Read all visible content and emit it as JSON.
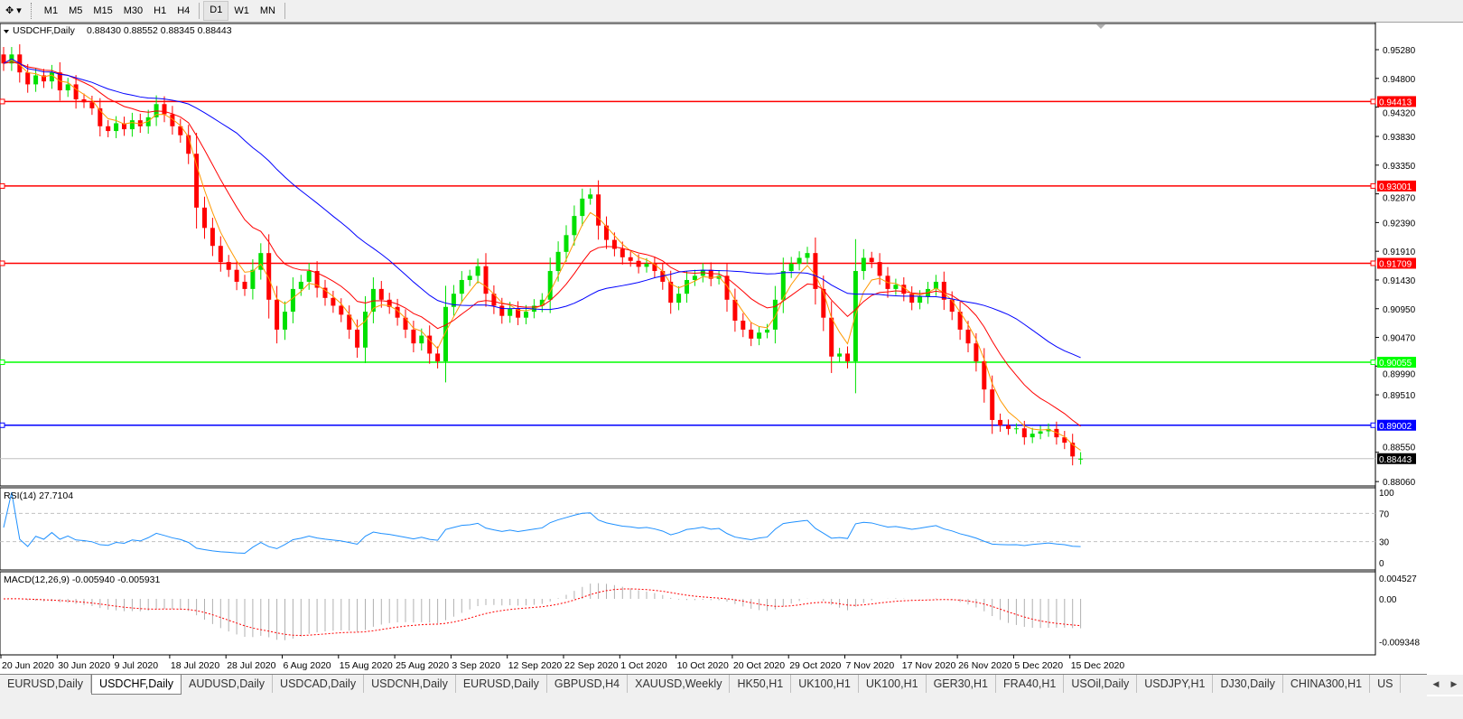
{
  "toolbar": {
    "timeframes": [
      "M1",
      "M5",
      "M15",
      "M30",
      "H1",
      "H4",
      "D1",
      "W1",
      "MN"
    ],
    "active_timeframe": "D1"
  },
  "chart": {
    "symbol_label": "USDCHF,Daily",
    "ohlc_label": "0.88430 0.88552 0.88345 0.88443",
    "rsi_label": "RSI(14) 27.7104",
    "macd_label": "MACD(12,26,9) -0.005940 -0.005931",
    "colors": {
      "bull": "#00e000",
      "bear": "#ff0000",
      "ma_fast": "#ff9900",
      "ma_mid": "#ff0000",
      "ma_slow": "#0000ff",
      "rsi": "#1e90ff",
      "macd_signal": "#ff0000",
      "macd_hist": "#b0b0b0"
    }
  },
  "chart_data": {
    "type": "candlestick",
    "price_axis": {
      "ticks": [
        "0.95280",
        "0.94800",
        "0.94320",
        "0.93830",
        "0.93350",
        "0.92870",
        "0.92390",
        "0.91910",
        "0.91430",
        "0.90950",
        "0.90470",
        "0.89990",
        "0.89510",
        "0.88550",
        "0.88060"
      ],
      "range": [
        0.8806,
        0.9528
      ]
    },
    "date_labels": [
      "20 Jun 2020",
      "30 Jun 2020",
      "9 Jul 2020",
      "18 Jul 2020",
      "28 Jul 2020",
      "6 Aug 2020",
      "15 Aug 2020",
      "25 Aug 2020",
      "3 Sep 2020",
      "12 Sep 2020",
      "22 Sep 2020",
      "1 Oct 2020",
      "10 Oct 2020",
      "20 Oct 2020",
      "29 Oct 2020",
      "7 Nov 2020",
      "17 Nov 2020",
      "26 Nov 2020",
      "5 Dec 2020",
      "15 Dec 2020"
    ],
    "closes": [
      0.9505,
      0.952,
      0.949,
      0.947,
      0.9485,
      0.9475,
      0.949,
      0.946,
      0.947,
      0.9445,
      0.944,
      0.943,
      0.94,
      0.9392,
      0.9405,
      0.9395,
      0.941,
      0.94,
      0.9415,
      0.9437,
      0.942,
      0.94,
      0.9385,
      0.9354,
      0.9264,
      0.923,
      0.92,
      0.9173,
      0.916,
      0.914,
      0.9128,
      0.916,
      0.9188,
      0.911,
      0.906,
      0.909,
      0.9128,
      0.914,
      0.9158,
      0.913,
      0.9113,
      0.91,
      0.9085,
      0.906,
      0.903,
      0.909,
      0.9128,
      0.911,
      0.9098,
      0.908,
      0.906,
      0.9037,
      0.905,
      0.902,
      0.9007,
      0.9098,
      0.912,
      0.9143,
      0.915,
      0.9166,
      0.912,
      0.91,
      0.9083,
      0.9095,
      0.908,
      0.909,
      0.91,
      0.911,
      0.9158,
      0.919,
      0.9218,
      0.925,
      0.9279,
      0.9286,
      0.9234,
      0.921,
      0.9195,
      0.9181,
      0.9175,
      0.9165,
      0.917,
      0.9158,
      0.914,
      0.9105,
      0.912,
      0.9143,
      0.915,
      0.916,
      0.9145,
      0.915,
      0.911,
      0.9075,
      0.906,
      0.9045,
      0.9055,
      0.906,
      0.911,
      0.9158,
      0.917,
      0.918,
      0.9188,
      0.9128,
      0.908,
      0.9015,
      0.902,
      0.9007,
      0.9158,
      0.918,
      0.9173,
      0.915,
      0.9128,
      0.9135,
      0.912,
      0.9105,
      0.9115,
      0.9128,
      0.914,
      0.911,
      0.909,
      0.906,
      0.9037,
      0.9007,
      0.896,
      0.8909,
      0.89,
      0.8894,
      0.8895,
      0.888,
      0.8886,
      0.889,
      0.8894,
      0.888,
      0.8871,
      0.8848,
      0.8844
    ],
    "last_candle": {
      "open": 0.8843,
      "high": 0.88552,
      "low": 0.88345,
      "close": 0.88443
    },
    "hlines": [
      {
        "price": "0.94413",
        "color": "#ff0000"
      },
      {
        "price": "0.93001",
        "color": "#ff0000"
      },
      {
        "price": "0.91709",
        "color": "#ff0000"
      },
      {
        "price": "0.90055",
        "color": "#00ff00"
      },
      {
        "price": "0.89002",
        "color": "#0000ff"
      }
    ],
    "bid": {
      "price": "0.88443",
      "color": "#000000"
    },
    "rsi_axis": [
      "100",
      "70",
      "30",
      "0"
    ],
    "macd_axis": [
      "0.004527",
      "0.00",
      "-0.009348"
    ]
  },
  "tabs": [
    "EURUSD,Daily",
    "USDCHF,Daily",
    "AUDUSD,Daily",
    "USDCAD,Daily",
    "USDCNH,Daily",
    "EURUSD,Daily",
    "GBPUSD,H4",
    "XAUUSD,Weekly",
    "HK50,H1",
    "UK100,H1",
    "UK100,H1",
    "GER30,H1",
    "FRA40,H1",
    "USOil,Daily",
    "USDJPY,H1",
    "DJ30,Daily",
    "CHINA300,H1",
    "US"
  ],
  "active_tab": 1
}
